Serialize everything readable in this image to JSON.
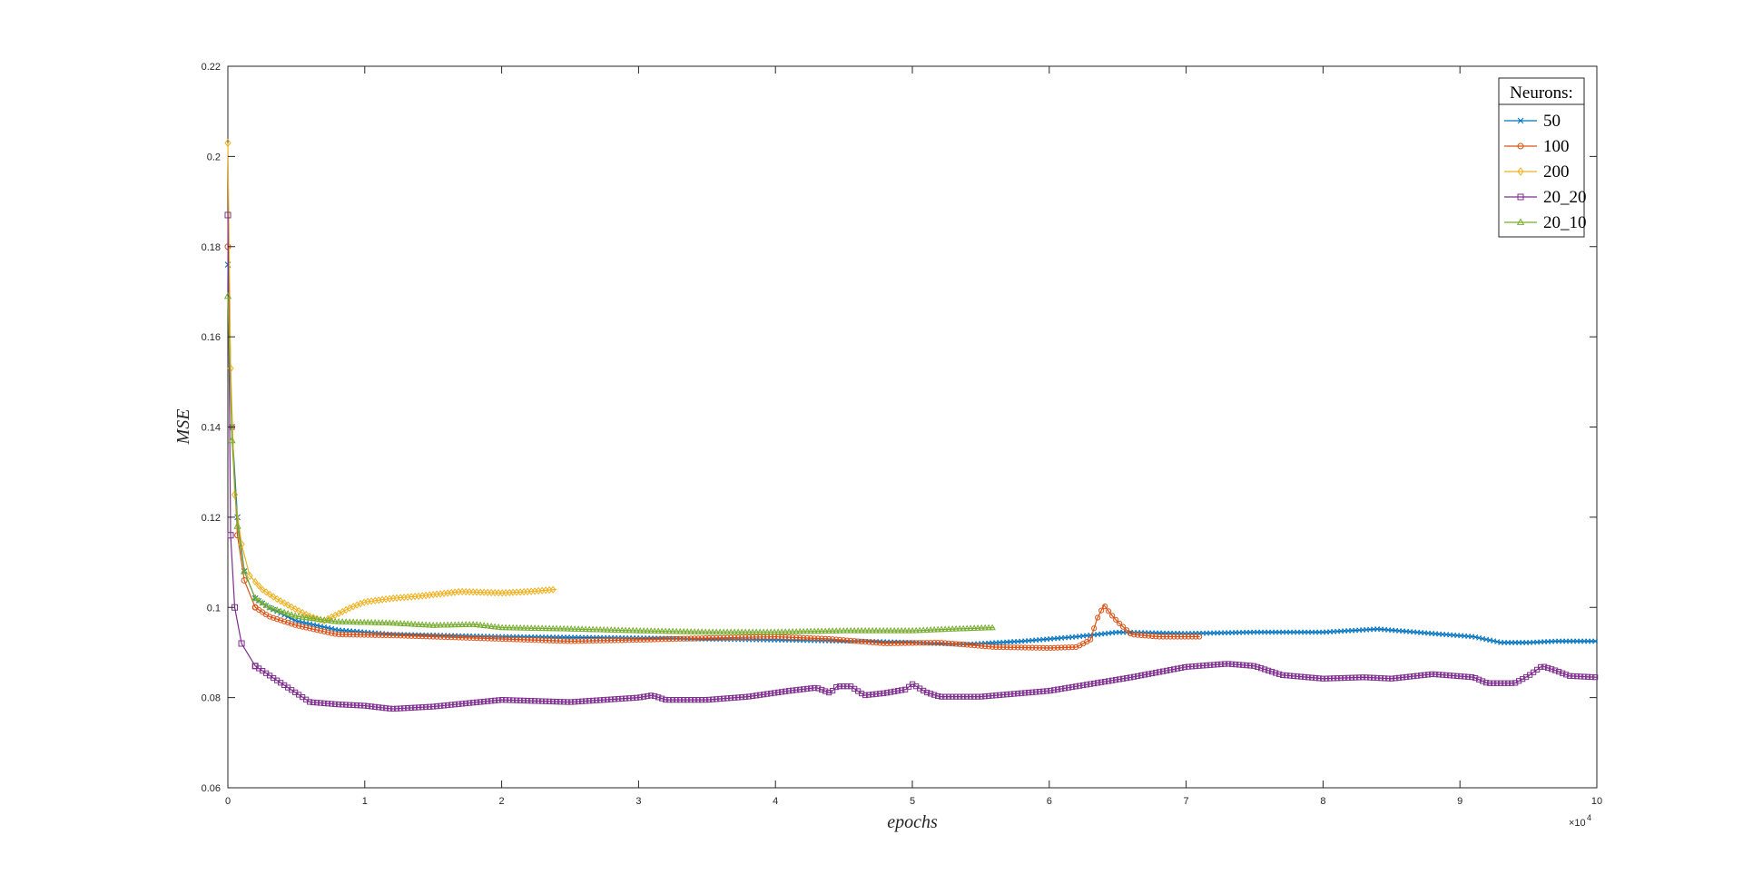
{
  "chart_data": {
    "type": "line",
    "xlabel": "epochs",
    "ylabel": "MSE",
    "xlim": [
      0,
      100000
    ],
    "ylim": [
      0.06,
      0.22
    ],
    "x_ticks": [
      0,
      10000,
      20000,
      30000,
      40000,
      50000,
      60000,
      70000,
      80000,
      90000,
      100000
    ],
    "x_tick_labels": [
      "0",
      "1",
      "2",
      "3",
      "4",
      "5",
      "6",
      "7",
      "8",
      "9",
      "10"
    ],
    "x_exponent_base": "×10",
    "x_exponent_power": "4",
    "y_ticks": [
      0.06,
      0.08,
      0.1,
      0.12,
      0.14,
      0.16,
      0.18,
      0.2,
      0.22
    ],
    "y_tick_labels": [
      "0.06",
      "0.08",
      "0.1",
      "0.12",
      "0.14",
      "0.16",
      "0.18",
      "0.2",
      "0.22"
    ],
    "grid": false,
    "legend_title": "Neurons:",
    "legend_position": "top-right",
    "series": [
      {
        "name": "50",
        "color": "#0072BD",
        "marker": "x",
        "points": [
          [
            0,
            0.176
          ],
          [
            300,
            0.14
          ],
          [
            700,
            0.12
          ],
          [
            1200,
            0.108
          ],
          [
            2000,
            0.102
          ],
          [
            3000,
            0.1
          ],
          [
            5000,
            0.097
          ],
          [
            8000,
            0.095
          ],
          [
            12000,
            0.094
          ],
          [
            20000,
            0.0935
          ],
          [
            30000,
            0.0932
          ],
          [
            40000,
            0.0928
          ],
          [
            46000,
            0.0925
          ],
          [
            50000,
            0.0922
          ],
          [
            54000,
            0.0918
          ],
          [
            58000,
            0.0925
          ],
          [
            62000,
            0.0935
          ],
          [
            65000,
            0.0945
          ],
          [
            70000,
            0.0942
          ],
          [
            75000,
            0.0945
          ],
          [
            80000,
            0.0945
          ],
          [
            84000,
            0.0952
          ],
          [
            88000,
            0.0942
          ],
          [
            91000,
            0.0935
          ],
          [
            93000,
            0.0922
          ],
          [
            95000,
            0.0922
          ],
          [
            97000,
            0.0925
          ],
          [
            100000,
            0.0925
          ]
        ]
      },
      {
        "name": "100",
        "color": "#D95319",
        "marker": "o",
        "points": [
          [
            0,
            0.18
          ],
          [
            300,
            0.14
          ],
          [
            700,
            0.116
          ],
          [
            1200,
            0.106
          ],
          [
            2000,
            0.1
          ],
          [
            3000,
            0.098
          ],
          [
            5000,
            0.096
          ],
          [
            8000,
            0.094
          ],
          [
            12000,
            0.0938
          ],
          [
            20000,
            0.093
          ],
          [
            25000,
            0.0925
          ],
          [
            30000,
            0.0928
          ],
          [
            35000,
            0.0932
          ],
          [
            40000,
            0.0935
          ],
          [
            44000,
            0.093
          ],
          [
            48000,
            0.092
          ],
          [
            52000,
            0.0922
          ],
          [
            56000,
            0.0912
          ],
          [
            60000,
            0.091
          ],
          [
            62000,
            0.0912
          ],
          [
            63000,
            0.0928
          ],
          [
            63500,
            0.0975
          ],
          [
            64000,
            0.1005
          ],
          [
            64500,
            0.0985
          ],
          [
            65000,
            0.0968
          ],
          [
            66000,
            0.094
          ],
          [
            68000,
            0.0935
          ],
          [
            70000,
            0.0935
          ],
          [
            71000,
            0.0935
          ]
        ]
      },
      {
        "name": "200",
        "color": "#EDB120",
        "marker": "diamond",
        "points": [
          [
            0,
            0.203
          ],
          [
            200,
            0.153
          ],
          [
            500,
            0.125
          ],
          [
            1000,
            0.114
          ],
          [
            1600,
            0.107
          ],
          [
            2500,
            0.104
          ],
          [
            3500,
            0.102
          ],
          [
            5000,
            0.0995
          ],
          [
            6000,
            0.098
          ],
          [
            7000,
            0.097
          ],
          [
            8000,
            0.0985
          ],
          [
            9000,
            0.1
          ],
          [
            10000,
            0.1012
          ],
          [
            12000,
            0.102
          ],
          [
            14000,
            0.1025
          ],
          [
            17000,
            0.1035
          ],
          [
            20000,
            0.1032
          ],
          [
            22000,
            0.1035
          ],
          [
            24000,
            0.104
          ]
        ]
      },
      {
        "name": "20_20",
        "color": "#7E2F8E",
        "marker": "square",
        "points": [
          [
            0,
            0.187
          ],
          [
            200,
            0.116
          ],
          [
            500,
            0.1
          ],
          [
            1000,
            0.092
          ],
          [
            2000,
            0.087
          ],
          [
            3000,
            0.085
          ],
          [
            4000,
            0.083
          ],
          [
            5000,
            0.081
          ],
          [
            6000,
            0.079
          ],
          [
            8000,
            0.0785
          ],
          [
            10000,
            0.0782
          ],
          [
            12000,
            0.0775
          ],
          [
            15000,
            0.078
          ],
          [
            20000,
            0.0795
          ],
          [
            25000,
            0.079
          ],
          [
            30000,
            0.08
          ],
          [
            31000,
            0.0805
          ],
          [
            32000,
            0.0795
          ],
          [
            35000,
            0.0795
          ],
          [
            38000,
            0.0802
          ],
          [
            41000,
            0.0815
          ],
          [
            43000,
            0.0822
          ],
          [
            44000,
            0.081
          ],
          [
            44500,
            0.0825
          ],
          [
            45500,
            0.0825
          ],
          [
            46500,
            0.0805
          ],
          [
            48000,
            0.081
          ],
          [
            49500,
            0.0818
          ],
          [
            50000,
            0.083
          ],
          [
            51000,
            0.0812
          ],
          [
            52000,
            0.0802
          ],
          [
            55000,
            0.0802
          ],
          [
            60000,
            0.0815
          ],
          [
            63000,
            0.083
          ],
          [
            66000,
            0.0845
          ],
          [
            70000,
            0.0868
          ],
          [
            73000,
            0.0875
          ],
          [
            75000,
            0.087
          ],
          [
            77000,
            0.085
          ],
          [
            80000,
            0.0842
          ],
          [
            83000,
            0.0845
          ],
          [
            85000,
            0.0842
          ],
          [
            88000,
            0.0852
          ],
          [
            91000,
            0.0845
          ],
          [
            92000,
            0.0832
          ],
          [
            94000,
            0.0832
          ],
          [
            95000,
            0.0848
          ],
          [
            96000,
            0.087
          ],
          [
            97000,
            0.086
          ],
          [
            98000,
            0.0848
          ],
          [
            100000,
            0.0845
          ]
        ]
      },
      {
        "name": "20_10",
        "color": "#77AC30",
        "marker": "triangle",
        "points": [
          [
            0,
            0.169
          ],
          [
            300,
            0.137
          ],
          [
            700,
            0.118
          ],
          [
            1200,
            0.108
          ],
          [
            2000,
            0.102
          ],
          [
            3000,
            0.1
          ],
          [
            5000,
            0.098
          ],
          [
            8000,
            0.0968
          ],
          [
            12000,
            0.0965
          ],
          [
            15000,
            0.096
          ],
          [
            18000,
            0.0962
          ],
          [
            20000,
            0.0955
          ],
          [
            25000,
            0.0952
          ],
          [
            30000,
            0.0948
          ],
          [
            35000,
            0.0945
          ],
          [
            40000,
            0.0945
          ],
          [
            45000,
            0.0948
          ],
          [
            50000,
            0.0948
          ],
          [
            53000,
            0.0952
          ],
          [
            56000,
            0.0955
          ]
        ]
      }
    ]
  }
}
